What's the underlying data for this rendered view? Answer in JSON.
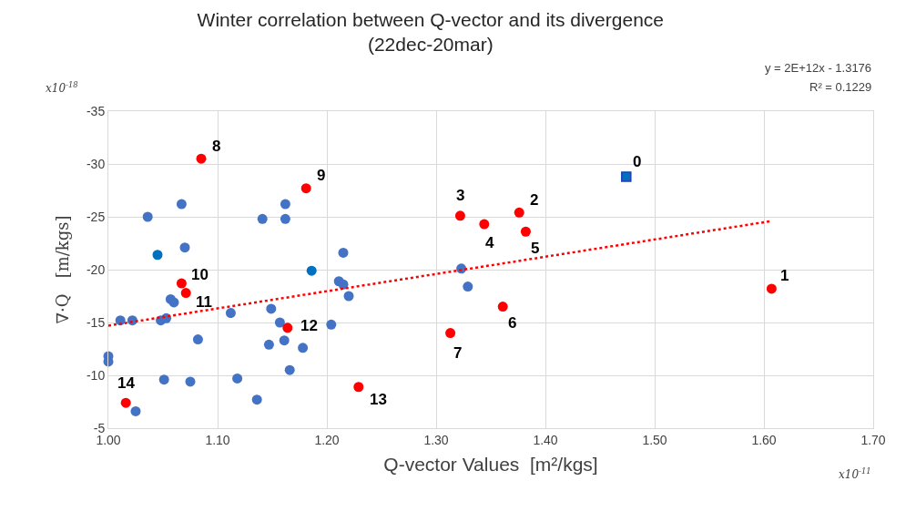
{
  "chart_data": {
    "type": "scatter",
    "title": "Winter correlation between Q-vector and its divergence\n(22dec-20mar)",
    "xlabel": "Q-vector Values  [m²/kgs]",
    "ylabel": "∇·Q   [m/kgs]",
    "annotations": [
      "y = 2E+12x - 1.3176",
      "R² = 0.1229",
      "x10$^{-18}$",
      "x10$^{-11}$",
      {
        "text": "0",
        "x": 1.474,
        "y": -28.8
      },
      {
        "text": "1",
        "x": 1.607,
        "y": -18.2
      },
      {
        "text": "2",
        "x": 1.376,
        "y": -25.4
      },
      {
        "text": "3",
        "x": 1.322,
        "y": -25.1
      },
      {
        "text": "4",
        "x": 1.344,
        "y": -24.3
      },
      {
        "text": "5",
        "x": 1.382,
        "y": -23.6
      },
      {
        "text": "6",
        "x": 1.361,
        "y": -16.5
      },
      {
        "text": "7",
        "x": 1.313,
        "y": -14.0
      },
      {
        "text": "8",
        "x": 1.085,
        "y": -30.5
      },
      {
        "text": "9",
        "x": 1.181,
        "y": -27.7
      },
      {
        "text": "10",
        "x": 1.067,
        "y": -18.7
      },
      {
        "text": "11",
        "x": 1.071,
        "y": -17.8
      },
      {
        "text": "12",
        "x": 1.164,
        "y": -14.5
      },
      {
        "text": "13",
        "x": 1.229,
        "y": -8.9
      },
      {
        "text": "14",
        "x": 1.016,
        "y": -7.4
      }
    ],
    "xlim": [
      1.0,
      1.7
    ],
    "xticks": [
      {
        "value": 1.0,
        "label": "1.00"
      },
      {
        "value": 1.1,
        "label": "1.10"
      },
      {
        "value": 1.2,
        "label": "1.20"
      },
      {
        "value": 1.3,
        "label": "1.30"
      },
      {
        "value": 1.4,
        "label": "1.40"
      },
      {
        "value": 1.5,
        "label": "1.50"
      },
      {
        "value": 1.6,
        "label": "1.60"
      },
      {
        "value": 1.7,
        "label": "1.70"
      }
    ],
    "ylim": [
      -5,
      -35
    ],
    "yticks": [
      -35,
      -30,
      -25,
      -20,
      -15,
      -10,
      -5
    ],
    "grid": true,
    "legend": false,
    "marker": "circle",
    "series": [
      {
        "color": "#4472c4",
        "x": [
          1.067,
          1.036,
          1.141,
          1.162,
          1.162,
          1.07,
          1.215,
          1.211,
          1.215,
          1.22,
          1.057,
          1.06,
          1.011,
          1.022,
          1.048,
          1.053,
          1.112,
          1.149,
          1.157,
          1.204,
          1.082,
          1.147,
          1.161,
          1.178,
          1.0,
          1.0,
          1.166,
          1.051,
          1.075,
          1.118,
          1.136,
          1.025,
          1.323,
          1.329
        ],
        "values": [
          -26.2,
          -25.0,
          -24.8,
          -26.2,
          -24.8,
          -22.1,
          -21.6,
          -18.9,
          -18.6,
          -17.5,
          -17.2,
          -16.9,
          -15.2,
          -15.2,
          -15.2,
          -15.4,
          -15.9,
          -16.3,
          -15.0,
          -14.8,
          -13.4,
          -12.9,
          -13.3,
          -12.6,
          -11.8,
          -11.3,
          -10.5,
          -9.6,
          -9.4,
          -9.7,
          -7.7,
          -6.6,
          -20.1,
          -18.4
        ]
      },
      {
        "color": "#0070c0",
        "x": [
          1.045,
          1.186
        ],
        "values": [
          -21.4,
          -19.9
        ]
      },
      {
        "color": "#ff0000",
        "x": [
          1.607,
          1.376,
          1.322,
          1.344,
          1.382,
          1.361,
          1.313,
          1.085,
          1.181,
          1.067,
          1.071,
          1.164,
          1.229,
          1.016
        ],
        "values": [
          -18.2,
          -25.4,
          -25.1,
          -24.3,
          -23.6,
          -16.5,
          -14.0,
          -30.5,
          -27.7,
          -18.7,
          -17.8,
          -14.5,
          -8.9,
          -7.4
        ]
      },
      {
        "color": "#0070c0",
        "marker": "square",
        "x": [
          1.474
        ],
        "values": [
          -28.8
        ]
      },
      {
        "type": "line",
        "color": "#ff0000",
        "line_style": "dotted",
        "marker": "none",
        "x": [
          1.0,
          1.607
        ],
        "values": [
          -14.7,
          -24.6
        ]
      }
    ]
  }
}
